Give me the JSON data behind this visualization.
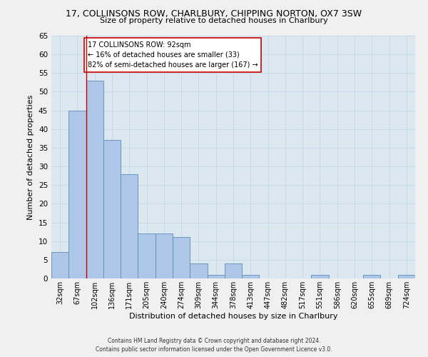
{
  "title_line1": "17, COLLINSONS ROW, CHARLBURY, CHIPPING NORTON, OX7 3SW",
  "title_line2": "Size of property relative to detached houses in Charlbury",
  "xlabel": "Distribution of detached houses by size in Charlbury",
  "ylabel": "Number of detached properties",
  "bar_labels": [
    "32sqm",
    "67sqm",
    "102sqm",
    "136sqm",
    "171sqm",
    "205sqm",
    "240sqm",
    "274sqm",
    "309sqm",
    "344sqm",
    "378sqm",
    "413sqm",
    "447sqm",
    "482sqm",
    "517sqm",
    "551sqm",
    "586sqm",
    "620sqm",
    "655sqm",
    "689sqm",
    "724sqm"
  ],
  "bar_values": [
    7,
    45,
    53,
    37,
    28,
    12,
    12,
    11,
    4,
    1,
    4,
    1,
    0,
    0,
    0,
    1,
    0,
    0,
    1,
    0,
    1
  ],
  "bar_color": "#aec6e8",
  "bar_edge_color": "#5b8db8",
  "vline_x": 1.5,
  "annotation_title": "17 COLLINSONS ROW: 92sqm",
  "annotation_line2": "← 16% of detached houses are smaller (33)",
  "annotation_line3": "82% of semi-detached houses are larger (167) →",
  "annotation_box_color": "#ffffff",
  "annotation_border_color": "#cc0000",
  "vline_color": "#cc0000",
  "grid_color": "#c8d8e8",
  "background_color": "#dce8f0",
  "fig_facecolor": "#f0f0f0",
  "ylim": [
    0,
    65
  ],
  "yticks": [
    0,
    5,
    10,
    15,
    20,
    25,
    30,
    35,
    40,
    45,
    50,
    55,
    60,
    65
  ],
  "footnote": "Contains HM Land Registry data © Crown copyright and database right 2024.\nContains public sector information licensed under the Open Government Licence v3.0."
}
